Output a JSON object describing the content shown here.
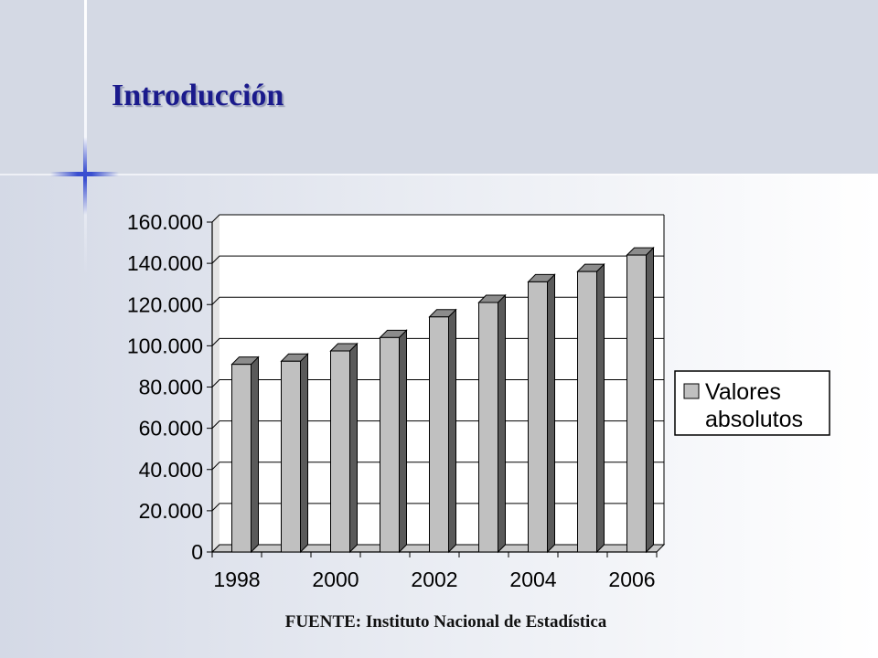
{
  "slide": {
    "title": "Introducción",
    "source": "FUENTE: Instituto Nacional de Estadística"
  },
  "colors": {
    "title": "#1a1a8c",
    "bar_front": "#c0c0c0",
    "bar_side": "#5a5a5a",
    "bar_top": "#8c8c8c"
  },
  "chart_data": {
    "type": "bar",
    "categories": [
      "1998",
      "1999",
      "2000",
      "2001",
      "2002",
      "2003",
      "2004",
      "2005",
      "2006"
    ],
    "x_tick_labels": [
      "1998",
      "",
      "2000",
      "",
      "2002",
      "",
      "2004",
      "",
      "2006"
    ],
    "series": [
      {
        "name": "Valores absolutos",
        "values": [
          91000,
          92500,
          97500,
          104000,
          114000,
          121000,
          131000,
          136000,
          144000
        ]
      }
    ],
    "y_ticks": [
      "0",
      "20.000",
      "40.000",
      "60.000",
      "80.000",
      "100.000",
      "120.000",
      "140.000",
      "160.000"
    ],
    "ylim": [
      0,
      160000
    ],
    "grid": true,
    "legend": "right",
    "three_d": true
  }
}
